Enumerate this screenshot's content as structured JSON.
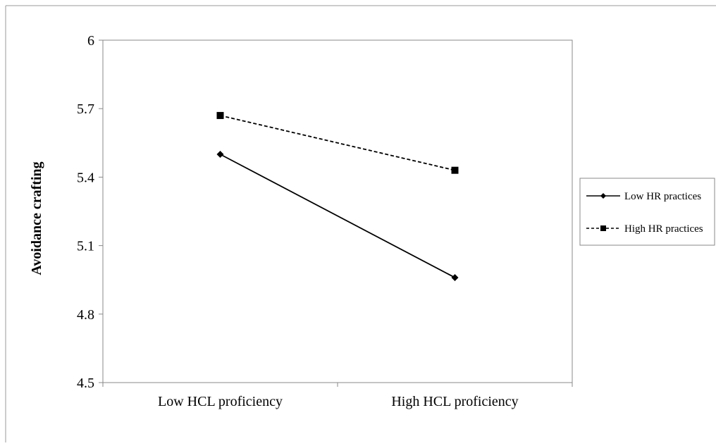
{
  "chart_data": {
    "type": "line",
    "title": "",
    "xlabel": "",
    "ylabel": "Avoidance crafting",
    "categories": [
      "Low HCL proficiency",
      "High HCL proficiency"
    ],
    "ylim": [
      4.5,
      6.0
    ],
    "yticks": [
      "4.5",
      "4.8",
      "5.1",
      "5.4",
      "5.7",
      "6"
    ],
    "grid": false,
    "legend_position": "right",
    "series": [
      {
        "name": "Low HR practices",
        "values": [
          5.5,
          4.96
        ],
        "line_style": "solid",
        "marker": "diamond",
        "color": "#000000"
      },
      {
        "name": "High HR practices",
        "values": [
          5.67,
          5.43
        ],
        "line_style": "dashed",
        "marker": "square",
        "color": "#000000"
      }
    ]
  }
}
